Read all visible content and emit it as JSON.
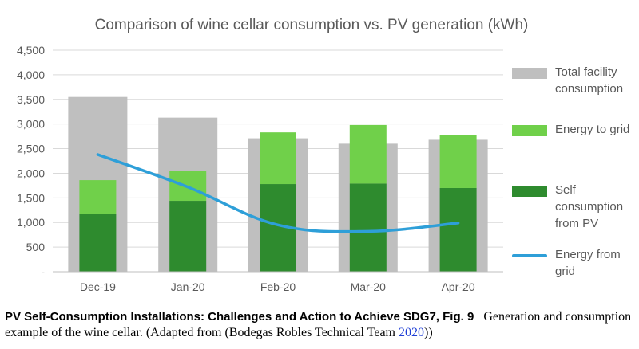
{
  "chart_data": {
    "type": "bar",
    "title": "Comparison of wine cellar consumption vs. PV generation (kWh)",
    "categories": [
      "Dec-19",
      "Jan-20",
      "Feb-20",
      "Mar-20",
      "Apr-20"
    ],
    "ylim": [
      0,
      4500
    ],
    "yticks": [
      "-",
      "500",
      "1,000",
      "1,500",
      "2,000",
      "2,500",
      "3,000",
      "3,500",
      "4,000",
      "4,500"
    ],
    "ytick_values": [
      0,
      500,
      1000,
      1500,
      2000,
      2500,
      3000,
      3500,
      4000,
      4500
    ],
    "grid": true,
    "legend_position": "right",
    "series": [
      {
        "name": "Total facility consumption",
        "kind": "bar-background",
        "color": "#bfbfbf",
        "values": [
          3550,
          3130,
          2710,
          2600,
          2680
        ]
      },
      {
        "name": "Energy to grid",
        "kind": "bar-stacked-top",
        "color": "#70d04a",
        "values": [
          680,
          610,
          1050,
          1190,
          1080
        ]
      },
      {
        "name": "Self consumption from PV",
        "kind": "bar-stacked-bottom",
        "color": "#2e8b2e",
        "values": [
          1180,
          1440,
          1780,
          1790,
          1700
        ]
      },
      {
        "name": "Energy from grid",
        "kind": "line",
        "color": "#2e9fd8",
        "values": [
          2380,
          1720,
          950,
          820,
          990
        ]
      }
    ]
  },
  "caption": {
    "title": "PV Self-Consumption Installations: Challenges and Action to Achieve SDG7, Fig. 9",
    "text_before": "Generation and consumption example of the wine cellar. (Adapted from (Bodegas Robles Technical Team ",
    "link": "2020",
    "text_after": "))"
  }
}
